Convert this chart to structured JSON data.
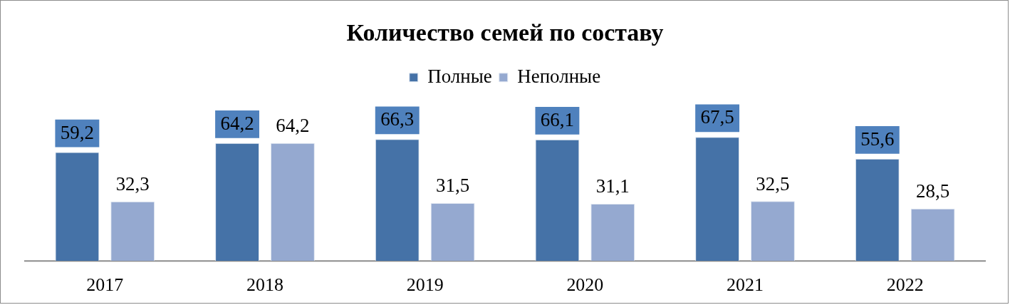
{
  "chart_data": {
    "type": "bar",
    "title": "Количество семей по составу",
    "categories": [
      "2017",
      "2018",
      "2019",
      "2020",
      "2021",
      "2022"
    ],
    "series": [
      {
        "name": "Полные",
        "color": "#4572a7",
        "values": [
          59.2,
          64.2,
          66.3,
          66.1,
          67.5,
          55.6
        ],
        "value_labels": [
          "59,2",
          "64,2",
          "66,3",
          "66,1",
          "67,5",
          "55,6"
        ]
      },
      {
        "name": "Неполные",
        "color": "#95a9d0",
        "values": [
          32.3,
          64.2,
          31.5,
          31.1,
          32.5,
          28.5
        ],
        "value_labels": [
          "32,3",
          "64,2",
          "31,5",
          "31,1",
          "32,5",
          "28,5"
        ]
      }
    ],
    "legend": "top"
  }
}
